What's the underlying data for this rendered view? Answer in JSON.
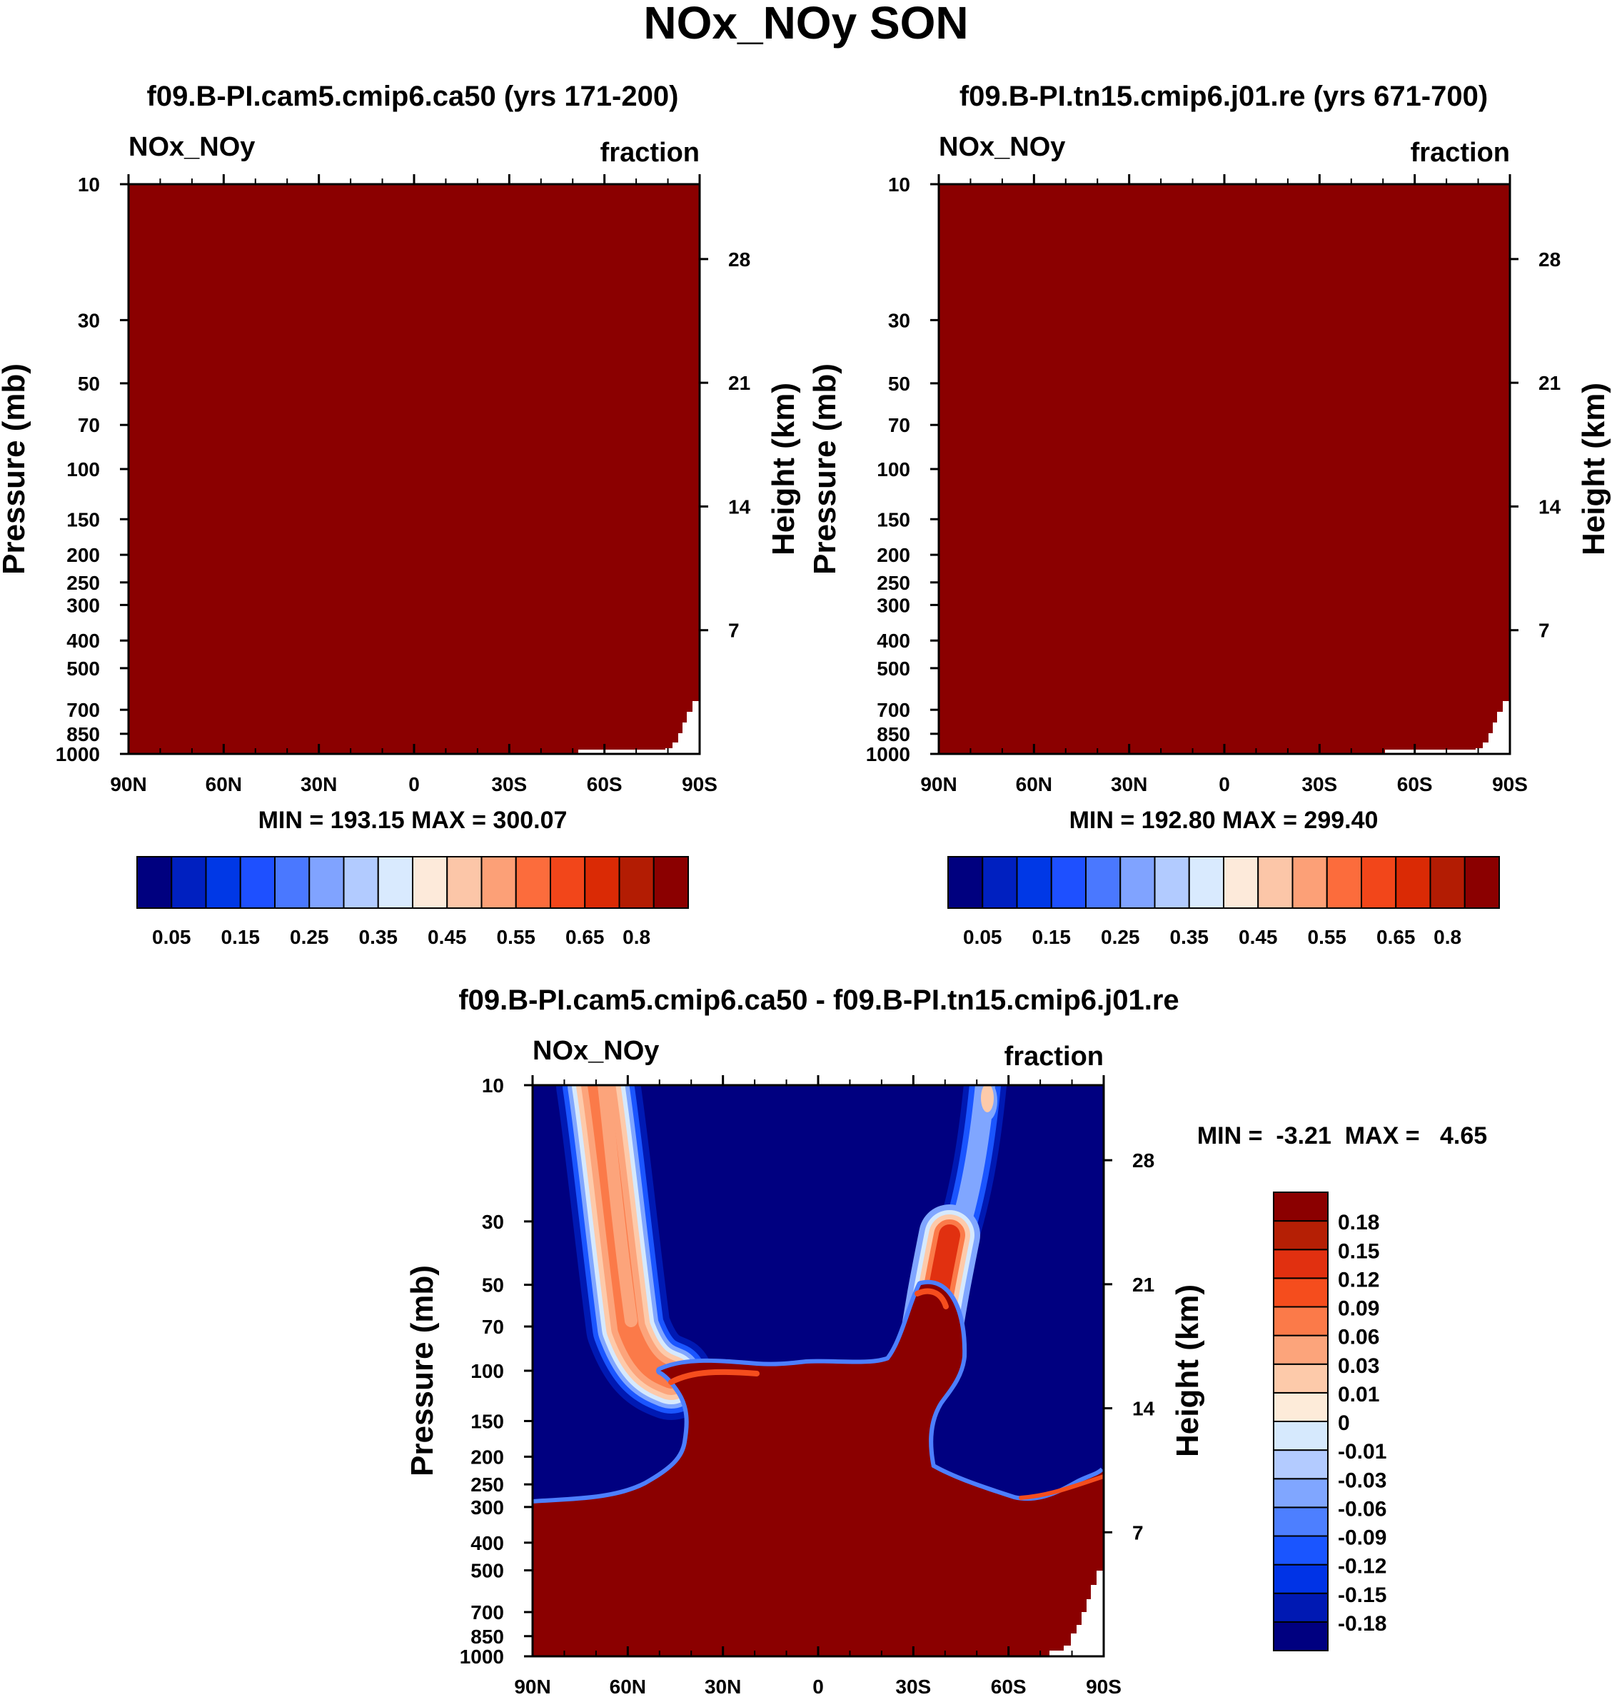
{
  "figure": {
    "title": "NOx_NOy SON",
    "colors": {
      "dark_red": "#8b0000",
      "navy": "#000080",
      "missing": "#ffffff"
    }
  },
  "chart_data": [
    {
      "id": "panel1",
      "type": "heatmap",
      "title": "f09.B-PI.cam5.cmip6.ca50 (yrs 171-200)",
      "left_label": "NOx_NOy",
      "right_label": "fraction",
      "ylabel": "Pressure (mb)",
      "ylabel_right": "Height (km)",
      "x_ticks": [
        "90N",
        "60N",
        "30N",
        "0",
        "30S",
        "60S",
        "90S"
      ],
      "x_values": [
        90,
        60,
        30,
        0,
        -30,
        -60,
        -90
      ],
      "y_ticks": [
        "10",
        "30",
        "50",
        "70",
        "100",
        "150",
        "200",
        "250",
        "300",
        "400",
        "500",
        "700",
        "850",
        "1000"
      ],
      "y_values": [
        10,
        30,
        50,
        70,
        100,
        150,
        200,
        250,
        300,
        400,
        500,
        700,
        850,
        1000
      ],
      "y_right_ticks": [
        "28",
        "21",
        "14",
        "7"
      ],
      "y_right_values": [
        28,
        21,
        14,
        7
      ],
      "ylim": [
        1000,
        10
      ],
      "xlim": [
        90,
        -90
      ],
      "stats": "MIN = 193.15  MAX = 300.07",
      "field": "All values above 0.8 (uniform dark red); missing data near the surface close to 90S.",
      "colorbar": {
        "orientation": "horizontal",
        "colors": [
          "#00007f",
          "#0020c0",
          "#0038e6",
          "#1e50ff",
          "#4a78ff",
          "#80a3ff",
          "#b2cbff",
          "#d9eafe",
          "#fdeada",
          "#fcc6a8",
          "#fca077",
          "#fc6c3c",
          "#f2461a",
          "#da2a05",
          "#b31c03",
          "#8b0000"
        ],
        "labels": [
          "0.05",
          "0.15",
          "0.25",
          "0.35",
          "0.45",
          "0.55",
          "0.65",
          "0.8"
        ]
      }
    },
    {
      "id": "panel2",
      "type": "heatmap",
      "title": "f09.B-PI.tn15.cmip6.j01.re (yrs 671-700)",
      "left_label": "NOx_NOy",
      "right_label": "fraction",
      "ylabel": "Pressure (mb)",
      "ylabel_right": "Height (km)",
      "x_ticks": [
        "90N",
        "60N",
        "30N",
        "0",
        "30S",
        "60S",
        "90S"
      ],
      "x_values": [
        90,
        60,
        30,
        0,
        -30,
        -60,
        -90
      ],
      "y_ticks": [
        "10",
        "30",
        "50",
        "70",
        "100",
        "150",
        "200",
        "250",
        "300",
        "400",
        "500",
        "700",
        "850",
        "1000"
      ],
      "y_values": [
        10,
        30,
        50,
        70,
        100,
        150,
        200,
        250,
        300,
        400,
        500,
        700,
        850,
        1000
      ],
      "y_right_ticks": [
        "28",
        "21",
        "14",
        "7"
      ],
      "y_right_values": [
        28,
        21,
        14,
        7
      ],
      "ylim": [
        1000,
        10
      ],
      "xlim": [
        90,
        -90
      ],
      "stats": "MIN = 192.80  MAX = 299.40",
      "field": "All values above 0.8 (uniform dark red); missing data near the surface close to 90S.",
      "colorbar": {
        "orientation": "horizontal",
        "colors": [
          "#00007f",
          "#0020c0",
          "#0038e6",
          "#1e50ff",
          "#4a78ff",
          "#80a3ff",
          "#b2cbff",
          "#d9eafe",
          "#fdeada",
          "#fcc6a8",
          "#fca077",
          "#fc6c3c",
          "#f2461a",
          "#da2a05",
          "#b31c03",
          "#8b0000"
        ],
        "labels": [
          "0.05",
          "0.15",
          "0.25",
          "0.35",
          "0.45",
          "0.55",
          "0.65",
          "0.8"
        ]
      }
    },
    {
      "id": "panel3",
      "type": "heatmap",
      "title": "f09.B-PI.cam5.cmip6.ca50 - f09.B-PI.tn15.cmip6.j01.re",
      "left_label": "NOx_NOy",
      "right_label": "fraction",
      "ylabel": "Pressure (mb)",
      "ylabel_right": "Height (km)",
      "x_ticks": [
        "90N",
        "60N",
        "30N",
        "0",
        "30S",
        "60S",
        "90S"
      ],
      "x_values": [
        90,
        60,
        30,
        0,
        -30,
        -60,
        -90
      ],
      "y_ticks": [
        "10",
        "30",
        "50",
        "70",
        "100",
        "150",
        "200",
        "250",
        "300",
        "400",
        "500",
        "700",
        "850",
        "1000"
      ],
      "y_values": [
        10,
        30,
        50,
        70,
        100,
        150,
        200,
        250,
        300,
        400,
        500,
        700,
        850,
        1000
      ],
      "y_right_ticks": [
        "28",
        "21",
        "14",
        "7"
      ],
      "y_right_values": [
        28,
        21,
        14,
        7
      ],
      "ylim": [
        1000,
        10
      ],
      "xlim": [
        90,
        -90
      ],
      "stats": "MIN =  -3.21  MAX =   4.65",
      "field": "Positive differences (>0.18) throughout the troposphere and tropical lower stratosphere (below ~90 mb at the equator, rising to ~150-300 mb toward the poles); negative (<-0.18) across most of the stratosphere, with thin positive plumes near 55-70N and 30-50S and a positive blob near 50-60S at 10 mb.",
      "colorbar": {
        "orientation": "vertical",
        "colors": [
          "#000080",
          "#0019b3",
          "#0033e6",
          "#1a55ff",
          "#4d7fff",
          "#80a6ff",
          "#b3cbff",
          "#d6e9fd",
          "#fdebd9",
          "#fdcaaa",
          "#fca47b",
          "#fb7a49",
          "#f54d1d",
          "#e13010",
          "#b51f05",
          "#8b0000"
        ],
        "labels": [
          "-0.18",
          "-0.15",
          "-0.12",
          "-0.09",
          "-0.06",
          "-0.03",
          "-0.01",
          "0",
          "0.01",
          "0.03",
          "0.06",
          "0.09",
          "0.12",
          "0.15",
          "0.18"
        ]
      }
    }
  ]
}
